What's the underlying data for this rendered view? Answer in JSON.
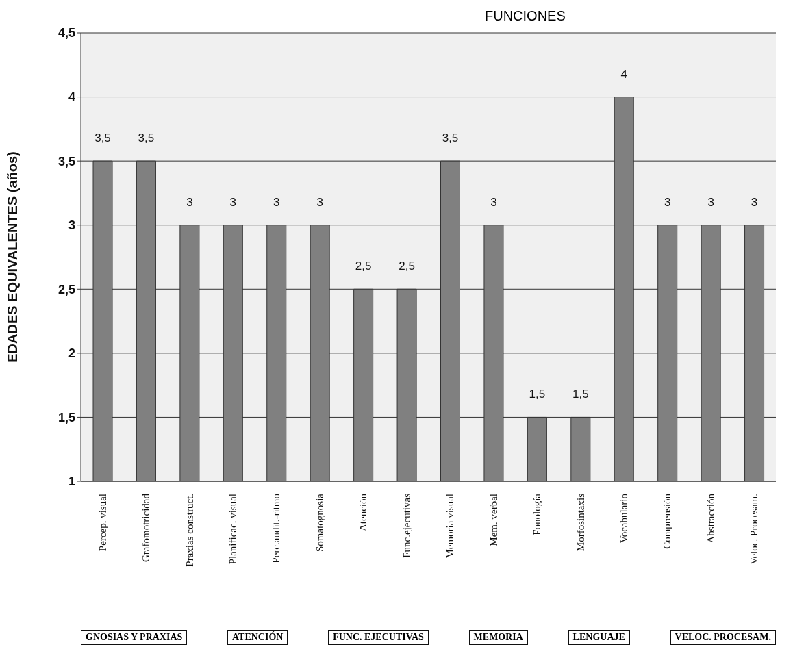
{
  "chart_data": {
    "type": "bar",
    "title": "FUNCIONES",
    "ylabel": "EDADES EQUIVALENTES (años)",
    "categories": [
      "Percep. visual",
      "Grafomotricidad",
      "Praxias construct.",
      "Planificac. visual",
      "Perc.audit.-ritmo",
      "Somatognosia",
      "Atención",
      "Func.ejecutivas",
      "Memoria visual",
      "Mem. verbal",
      "Fonología",
      "Morfosintaxis",
      "Vocabulario",
      "Comprensión",
      "Abstracción",
      "Veloc. Procesam."
    ],
    "values": [
      3.5,
      3.5,
      3,
      3,
      3,
      3,
      2.5,
      2.5,
      3.5,
      3,
      1.5,
      1.5,
      4,
      3,
      3,
      3
    ],
    "value_labels": [
      "3,5",
      "3,5",
      "3",
      "3",
      "3",
      "3",
      "2,5",
      "2,5",
      "3,5",
      "3",
      "1,5",
      "1,5",
      "4",
      "3",
      "3",
      "3"
    ],
    "color": "#808080",
    "ylim": [
      1,
      4.5
    ],
    "yticks": [
      1,
      {
        "value": 1.5,
        "label": "1,5"
      },
      2,
      {
        "value": 2.5,
        "label": "2,5"
      },
      3,
      {
        "value": 3.5,
        "label": "3,5"
      },
      4,
      {
        "value": 4.5,
        "label": "4,5"
      }
    ],
    "grid": "y",
    "annotations": [
      "GNOSIAS Y PRAXIAS",
      "ATENCIÓN",
      "FUNC. EJECUTIVAS",
      "MEMORIA",
      "LENGUAJE",
      "VELOC. PROCESAM."
    ]
  }
}
